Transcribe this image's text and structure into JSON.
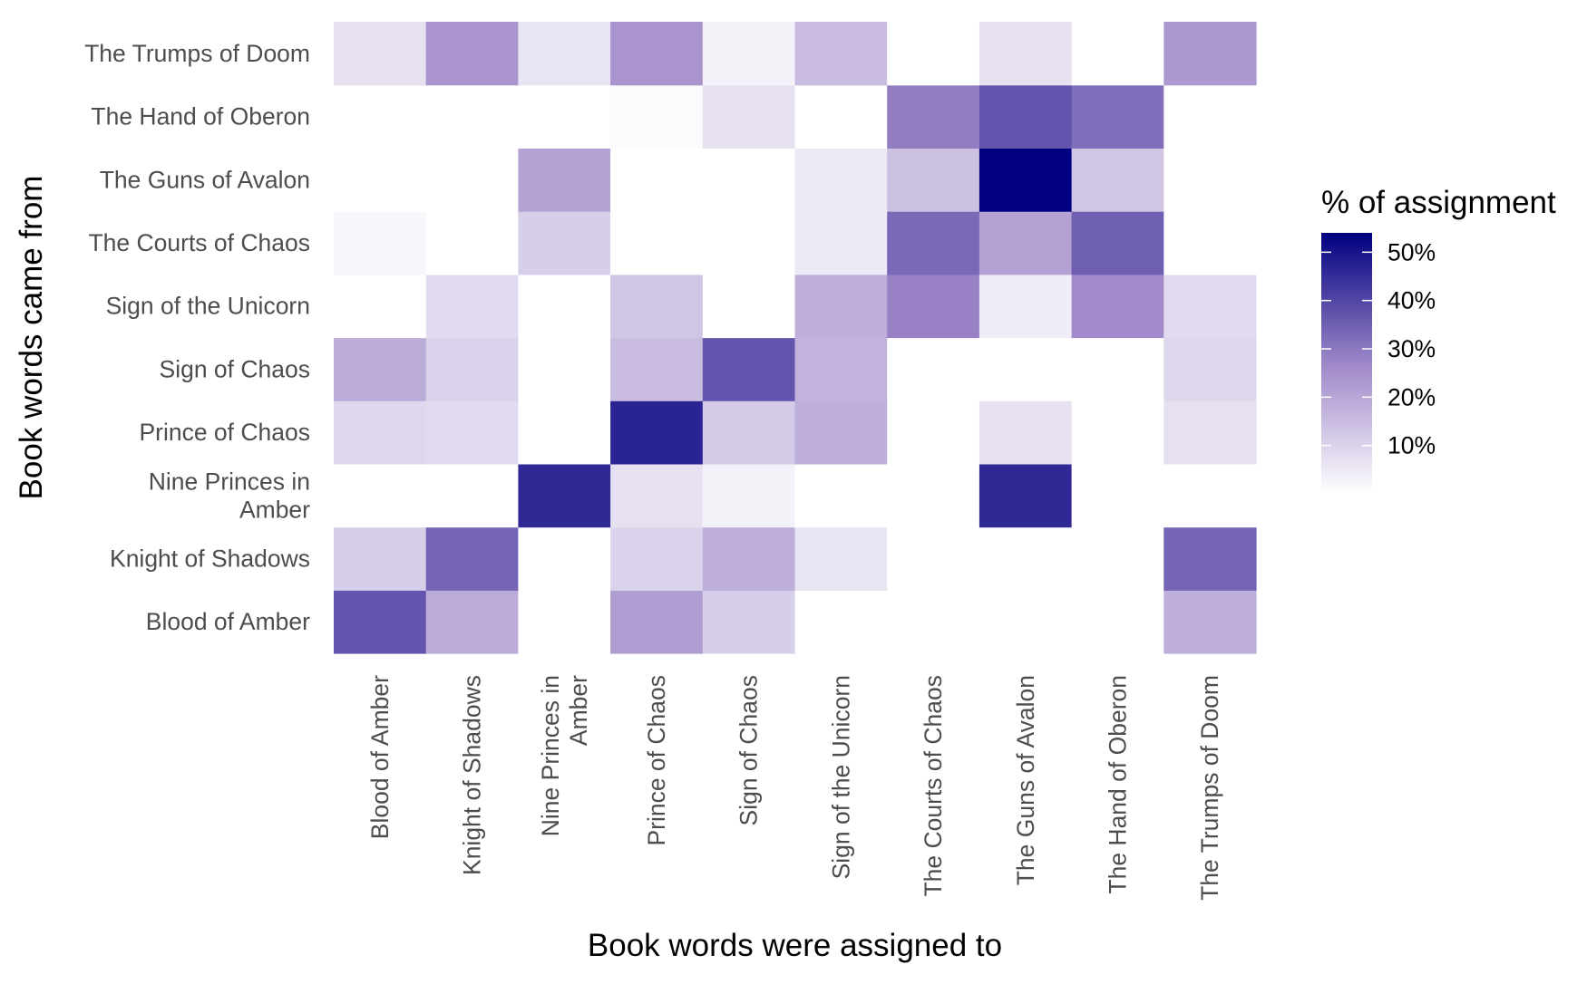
{
  "chart_data": {
    "type": "heatmap",
    "title": "",
    "xlabel": "Book words were assigned to",
    "ylabel": "Book words came from",
    "x_categories": [
      "Blood of Amber",
      "Knight of Shadows",
      "Nine Princes in Amber",
      "Prince of Chaos",
      "Sign of Chaos",
      "Sign of the Unicorn",
      "The Courts of Chaos",
      "The Guns of Avalon",
      "The Hand of Oberon",
      "The Trumps of Doom"
    ],
    "y_categories": [
      "Blood of Amber",
      "Knight of Shadows",
      "Nine Princes in Amber",
      "Prince of Chaos",
      "Sign of Chaos",
      "Sign of the Unicorn",
      "The Courts of Chaos",
      "The Guns of Avalon",
      "The Hand of Oberon",
      "The Trumps of Doom"
    ],
    "values": [
      [
        37,
        19,
        0,
        22,
        11,
        0,
        0,
        0,
        0,
        18
      ],
      [
        11,
        34,
        0,
        10,
        18,
        6,
        0,
        0,
        0,
        34
      ],
      [
        0,
        0,
        46,
        7,
        3,
        0,
        0,
        46,
        0,
        0
      ],
      [
        9,
        8,
        0,
        47,
        12,
        18,
        0,
        7,
        0,
        7
      ],
      [
        19,
        10,
        0,
        15,
        37,
        17,
        0,
        0,
        0,
        9
      ],
      [
        0,
        8,
        0,
        13,
        0,
        18,
        28,
        4,
        26,
        8
      ],
      [
        2,
        0,
        11,
        0,
        0,
        5,
        33,
        21,
        35,
        0
      ],
      [
        0,
        0,
        21,
        0,
        0,
        5,
        14,
        54,
        13,
        0
      ],
      [
        0,
        0,
        0,
        1,
        7,
        0,
        29,
        37,
        32,
        0
      ],
      [
        7,
        24,
        6,
        24,
        3,
        15,
        0,
        7,
        0,
        23
      ]
    ],
    "color_scale": {
      "low": "#ffffff",
      "mid": "#9e87c8",
      "high": "#000080",
      "range": [
        0,
        54
      ]
    },
    "legend": {
      "title": "% of assignment",
      "ticks": [
        10,
        20,
        30,
        40,
        50
      ],
      "tick_labels": [
        "10%",
        "20%",
        "30%",
        "40%",
        "50%"
      ],
      "position": "right"
    },
    "grid": false
  }
}
